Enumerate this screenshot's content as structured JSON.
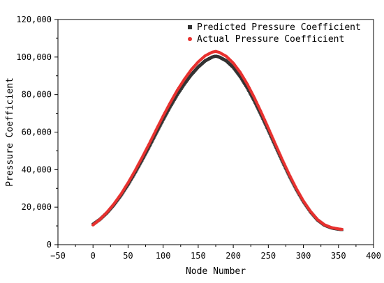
{
  "chart_data": {
    "type": "scatter",
    "title": "",
    "xlabel": "Node Number",
    "ylabel": "Pressure Coefficient",
    "xlim": [
      -50,
      400
    ],
    "ylim": [
      0,
      120000
    ],
    "xticks": [
      "−50",
      "0",
      "50",
      "100",
      "150",
      "200",
      "250",
      "300",
      "350",
      "400"
    ],
    "yticks": [
      "0",
      "20,000",
      "40,000",
      "60,000",
      "80,000",
      "100,000",
      "120,000"
    ],
    "legend_position": "top-right",
    "grid": false,
    "series": [
      {
        "name": "Predicted Pressure Coefficient",
        "marker": "square",
        "color": "#333333",
        "x": [
          0,
          10,
          20,
          30,
          40,
          50,
          60,
          70,
          80,
          90,
          100,
          110,
          120,
          130,
          140,
          150,
          160,
          170,
          175,
          180,
          190,
          200,
          210,
          220,
          230,
          240,
          250,
          260,
          270,
          280,
          290,
          300,
          310,
          320,
          330,
          340,
          350,
          355
        ],
        "y": [
          10800,
          13500,
          17000,
          21300,
          26300,
          32000,
          38300,
          45000,
          52000,
          59300,
          66500,
          73400,
          79800,
          85500,
          90500,
          94700,
          98000,
          100000,
          100500,
          100000,
          98000,
          94500,
          89500,
          83500,
          76500,
          68800,
          60800,
          52500,
          44300,
          36500,
          29300,
          22900,
          17500,
          13200,
          10400,
          8900,
          8200,
          8000
        ]
      },
      {
        "name": "Actual Pressure Coefficient",
        "marker": "circle",
        "color": "#e8312f",
        "x": [
          0,
          10,
          20,
          30,
          40,
          50,
          60,
          70,
          80,
          90,
          100,
          110,
          120,
          130,
          140,
          150,
          160,
          170,
          175,
          180,
          190,
          200,
          210,
          220,
          230,
          240,
          250,
          260,
          270,
          280,
          290,
          300,
          310,
          320,
          330,
          340,
          350,
          355
        ],
        "y": [
          10500,
          13500,
          17300,
          21800,
          27000,
          33000,
          39500,
          46500,
          53700,
          61200,
          68600,
          75600,
          82200,
          88000,
          93200,
          97400,
          100700,
          102600,
          103000,
          102500,
          100400,
          96800,
          91800,
          85600,
          78400,
          70500,
          62200,
          53700,
          45300,
          37300,
          29900,
          23300,
          17800,
          13400,
          10600,
          9100,
          8400,
          8200
        ]
      }
    ]
  }
}
